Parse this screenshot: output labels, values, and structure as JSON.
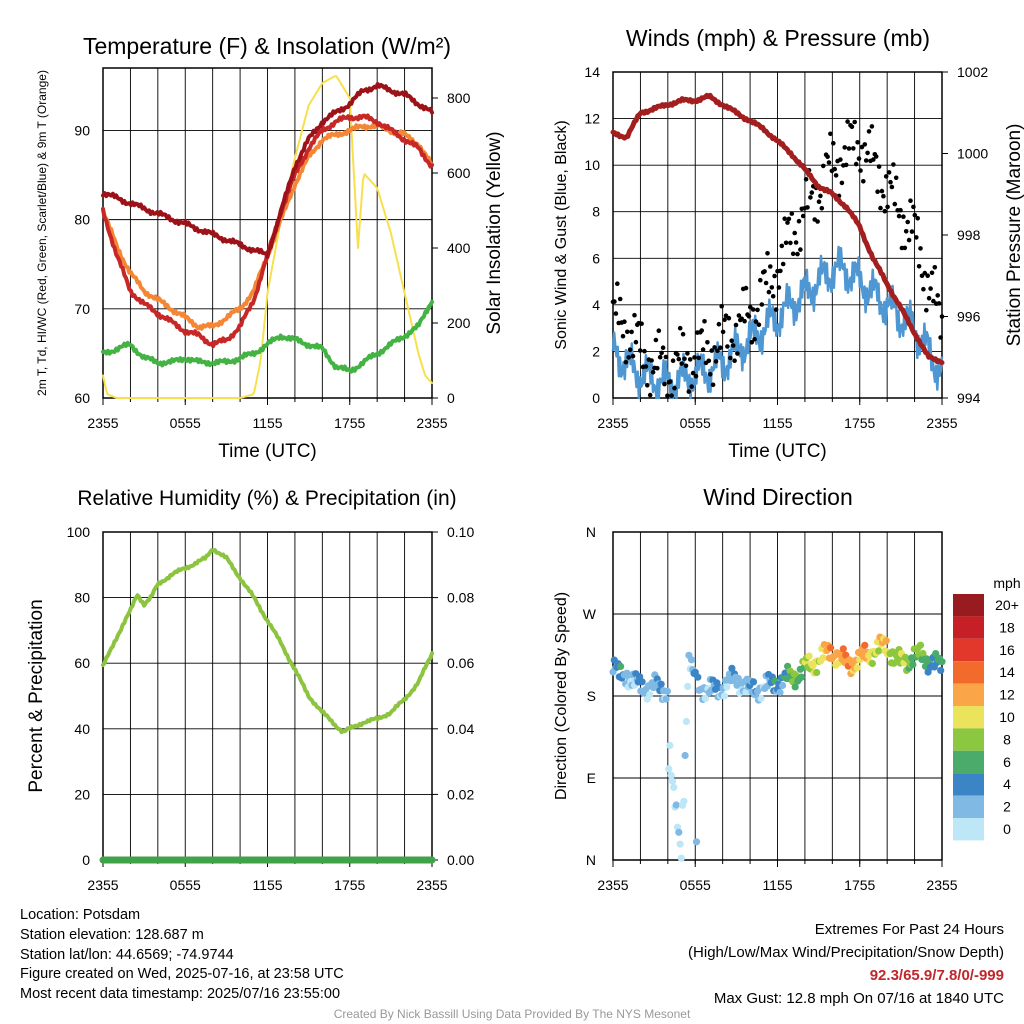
{
  "colors": {
    "temp_red": "#c62828",
    "dewpoint_green": "#43b343",
    "heat_index_scarlet": "#9c1218",
    "temp9m_orange": "#f58634",
    "insolation_yellow": "#f7e04b",
    "gust_black": "#000000",
    "wind_blue": "#4f97d2",
    "pressure_maroon": "#a31f1f",
    "rh_green": "#8cc33f",
    "precip_green": "#3fa34a",
    "gridline": "#000000"
  },
  "chart_data": [
    {
      "type": "line",
      "title": "Temperature (F) & Insolation (W/m²)",
      "xlabel": "Time (UTC)",
      "ylabel": "2m T, Td, HI/WC (Red, Green, Scarlet/Blue) & 9m T (Orange)",
      "ylabel2": "Solar Insolation (Yellow)",
      "x_ticks": [
        "2355",
        "0555",
        "1155",
        "1755",
        "2355"
      ],
      "x_hours": [
        0,
        24
      ],
      "ylim": [
        60,
        97
      ],
      "y_ticks": [
        60,
        70,
        80,
        90
      ],
      "y2lim": [
        0,
        880
      ],
      "y2_ticks": [
        0,
        200,
        400,
        600,
        800
      ],
      "grid": true,
      "series": [
        {
          "name": "2m T",
          "color": "#c62828",
          "axis": "left",
          "x": [
            0,
            1,
            2,
            3,
            4,
            5,
            6,
            7,
            8,
            9,
            10,
            11,
            12,
            13,
            14,
            15,
            16,
            17,
            18,
            19,
            20,
            21,
            22,
            23,
            24
          ],
          "y": [
            81,
            76,
            72,
            70.5,
            69.5,
            68.5,
            67.5,
            67,
            66,
            66.5,
            68,
            71,
            76,
            81,
            85,
            88,
            90,
            91,
            91.5,
            91.5,
            91,
            90,
            89,
            88,
            86
          ]
        },
        {
          "name": "9m T",
          "color": "#f58634",
          "axis": "left",
          "x": [
            0,
            1,
            2,
            3,
            4,
            5,
            6,
            7,
            8,
            9,
            10,
            11,
            12,
            13,
            14,
            15,
            16,
            17,
            18,
            19,
            20,
            21,
            22,
            23,
            24
          ],
          "y": [
            81,
            77,
            74,
            72,
            71,
            70,
            69,
            68,
            68,
            69,
            70,
            72,
            76,
            80,
            84,
            87,
            89,
            89.5,
            90,
            90.5,
            90.5,
            90,
            89.5,
            88.5,
            86
          ]
        },
        {
          "name": "Td",
          "color": "#43b343",
          "axis": "left",
          "x": [
            0,
            1,
            2,
            3,
            4,
            5,
            6,
            7,
            8,
            9,
            10,
            11,
            12,
            13,
            14,
            15,
            16,
            17,
            18,
            19,
            20,
            21,
            22,
            23,
            24
          ],
          "y": [
            65,
            65.5,
            66,
            64.5,
            64,
            64,
            64.5,
            64,
            64,
            64,
            64.5,
            65,
            66,
            67,
            66.5,
            66,
            65.5,
            63.5,
            63,
            64,
            65,
            66,
            67,
            68,
            71
          ]
        },
        {
          "name": "HI/WC",
          "color": "#9c1218",
          "axis": "left",
          "x": [
            0,
            12,
            13,
            14,
            15,
            16,
            17,
            18,
            19,
            20,
            21,
            22,
            23,
            24
          ],
          "y": [
            83,
            76,
            81,
            86,
            89,
            91,
            92,
            93,
            94.5,
            95,
            94.5,
            94,
            93,
            92
          ]
        },
        {
          "name": "Solar Insolation",
          "color": "#f7e04b",
          "axis": "right",
          "x": [
            0,
            0.3,
            1,
            2,
            3,
            4,
            5,
            6,
            7,
            8,
            9,
            10,
            11,
            11.5,
            12,
            13,
            14,
            15,
            16,
            17,
            18,
            18.6,
            19,
            20,
            21,
            22,
            23,
            23.5,
            24
          ],
          "y": [
            60,
            10,
            0,
            0,
            0,
            0,
            0,
            0,
            0,
            0,
            0,
            0,
            10,
            100,
            280,
            480,
            640,
            780,
            840,
            860,
            800,
            400,
            600,
            560,
            440,
            280,
            120,
            60,
            40
          ]
        }
      ]
    },
    {
      "type": "scatter",
      "title": "Winds (mph) & Pressure (mb)",
      "xlabel": "Time (UTC)",
      "ylabel": "Sonic Wind & Gust (Blue, Black)",
      "ylabel2": "Station Pressure (Maroon)",
      "x_ticks": [
        "2355",
        "0555",
        "1155",
        "1755",
        "2355"
      ],
      "ylim": [
        0,
        14
      ],
      "y_ticks": [
        0,
        2,
        4,
        6,
        8,
        10,
        12,
        14
      ],
      "y2lim": [
        994,
        1002
      ],
      "y2_ticks": [
        994,
        996,
        998,
        1000,
        1002
      ],
      "grid": true,
      "series": [
        {
          "name": "Sonic Wind",
          "color": "#4f97d2",
          "axis": "left",
          "x": [
            0,
            1,
            2,
            3,
            4,
            5,
            6,
            7,
            8,
            9,
            10,
            11,
            12,
            13,
            14,
            15,
            16,
            17,
            18,
            19,
            20,
            21,
            22,
            23,
            24
          ],
          "y": [
            2,
            1.5,
            1,
            0.8,
            0.6,
            0.8,
            1,
            1.2,
            1.5,
            2,
            2.5,
            3,
            3.5,
            4,
            4.5,
            5,
            5.5,
            5.5,
            5,
            4.5,
            4,
            3.5,
            3,
            2,
            1
          ]
        },
        {
          "name": "Gust",
          "color": "#000000",
          "axis": "left",
          "x": [
            0,
            1,
            2,
            3,
            4,
            5,
            6,
            7,
            8,
            9,
            10,
            11,
            12,
            13,
            14,
            15,
            16,
            17,
            18,
            19,
            20,
            21,
            22,
            23,
            24
          ],
          "y": [
            3.5,
            3,
            2,
            1.5,
            1.2,
            1.5,
            1.8,
            2,
            2.5,
            3,
            3.5,
            4.5,
            5.5,
            7,
            8,
            9,
            10,
            10.5,
            11,
            10,
            9,
            8,
            7,
            5,
            3
          ]
        },
        {
          "name": "Station Pressure",
          "color": "#a31f1f",
          "axis": "right",
          "x": [
            0,
            1,
            2,
            3,
            4,
            5,
            6,
            7,
            8,
            9,
            10,
            11,
            12,
            13,
            14,
            15,
            16,
            17,
            18,
            19,
            20,
            21,
            22,
            23,
            24
          ],
          "y": [
            1000.5,
            1000.4,
            1001,
            1001.1,
            1001.2,
            1001.3,
            1001.3,
            1001.4,
            1001.2,
            1001,
            1000.8,
            1000.6,
            1000.3,
            1000,
            999.6,
            999.2,
            999,
            998.7,
            998.2,
            997.4,
            996.8,
            996.2,
            995.6,
            995,
            994.9
          ]
        }
      ]
    },
    {
      "type": "line",
      "title": "Relative Humidity (%) & Precipitation (in)",
      "xlabel": "",
      "ylabel": "Percent & Precipitation",
      "x_ticks": [
        "2355",
        "0555",
        "1155",
        "1755",
        "2355"
      ],
      "ylim": [
        0,
        100
      ],
      "y_ticks": [
        0,
        20,
        40,
        60,
        80,
        100
      ],
      "y2lim": [
        0,
        0.1
      ],
      "y2_ticks": [
        "0.00",
        "0.02",
        "0.04",
        "0.06",
        "0.08",
        "0.10"
      ],
      "grid": true,
      "series": [
        {
          "name": "Relative Humidity",
          "color": "#8cc33f",
          "axis": "left",
          "x": [
            0,
            1,
            2,
            2.5,
            3,
            3.5,
            4,
            5,
            6,
            7,
            7.5,
            8,
            9,
            10,
            11,
            12,
            13,
            14,
            15,
            16,
            17,
            17.5,
            18,
            19,
            20,
            21,
            22,
            23,
            24
          ],
          "y": [
            59,
            68,
            76,
            81,
            78,
            80,
            84,
            87,
            89,
            91,
            92,
            95,
            92,
            86,
            80,
            73,
            66,
            58,
            50,
            45,
            41,
            39,
            40,
            42,
            43,
            45,
            49,
            54,
            63
          ]
        },
        {
          "name": "Precipitation",
          "color": "#3fa34a",
          "axis": "right",
          "x": [
            0,
            24
          ],
          "y": [
            0,
            0
          ]
        }
      ]
    },
    {
      "type": "scatter",
      "title": "Wind Direction",
      "ylabel": "Direction (Colored By Speed)",
      "x_ticks": [
        "2355",
        "0555",
        "1155",
        "1755",
        "2355"
      ],
      "y_ticks": [
        "N",
        "E",
        "S",
        "W",
        "N"
      ],
      "ylim": [
        0,
        360
      ],
      "grid": true,
      "legend": {
        "title": "mph",
        "placement": "right",
        "labels": [
          "20+",
          "18",
          "16",
          "14",
          "12",
          "10",
          "8",
          "6",
          "4",
          "2",
          "0"
        ],
        "colors": [
          "#981c1f",
          "#c62026",
          "#e2382c",
          "#f36b2c",
          "#fba549",
          "#ece35c",
          "#8cc83f",
          "#4aab6b",
          "#3b85c6",
          "#7fb9e4",
          "#bde6f7"
        ]
      },
      "series": [
        {
          "name": "Direction",
          "axis": "left",
          "x": [
            0,
            0.5,
            1,
            1.5,
            2,
            3,
            4,
            4.2,
            4.5,
            5,
            5.5,
            6,
            7,
            8,
            9,
            10,
            11,
            12,
            13,
            14,
            15,
            16,
            17,
            18,
            19,
            20,
            21,
            22,
            23,
            24
          ],
          "y": [
            215,
            200,
            205,
            195,
            190,
            190,
            185,
            100,
            60,
            5,
            220,
            195,
            185,
            190,
            200,
            185,
            190,
            195,
            200,
            210,
            220,
            230,
            215,
            220,
            230,
            235,
            215,
            225,
            220,
            210
          ],
          "speed": [
            2,
            2,
            1,
            1,
            1,
            1,
            1,
            0,
            0,
            0,
            1,
            1,
            1,
            1,
            1,
            1,
            1,
            2,
            3,
            4,
            5,
            6,
            6,
            6,
            5,
            5,
            4,
            4,
            3,
            2
          ]
        }
      ]
    }
  ],
  "footer": {
    "location": "Location: Potsdam",
    "elevation": "Station elevation: 128.687 m",
    "latlon": "Station lat/lon: 44.6569; -74.9744",
    "created": "Figure created on Wed, 2025-07-16, at 23:58 UTC",
    "recent": "Most recent data timestamp: 2025/07/16 23:55:00",
    "extremes_title": "Extremes For Past 24 Hours",
    "extremes_desc": "(High/Low/Max Wind/Precipitation/Snow Depth)",
    "extremes_values": "92.3/65.9/7.8/0/-999",
    "max_gust": "Max Gust: 12.8 mph On 07/16 at 1840 UTC",
    "credit": "Created By Nick Bassill Using Data Provided By The NYS Mesonet"
  }
}
